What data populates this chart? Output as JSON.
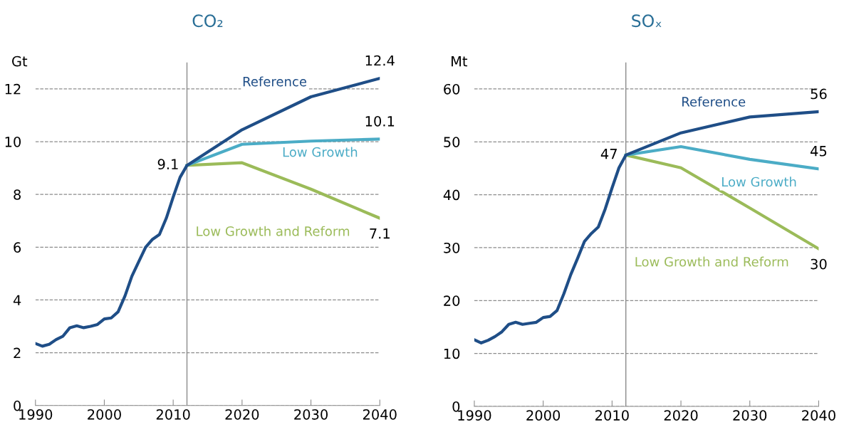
{
  "chart_data": [
    {
      "type": "line",
      "title": "CO₂",
      "ylabel": "Gt",
      "xlim": [
        1990,
        2040
      ],
      "xticks": [
        1990,
        2000,
        2010,
        2020,
        2030,
        2040
      ],
      "ylim": [
        0,
        13
      ],
      "yticks": [
        0,
        2,
        4,
        6,
        8,
        10,
        12
      ],
      "grid": "y",
      "legend": false,
      "series": [
        {
          "name": "Reference",
          "color": "#1f4e87",
          "x": [
            1990,
            1991,
            1992,
            1993,
            1994,
            1995,
            1996,
            1997,
            1998,
            1999,
            2000,
            2001,
            2002,
            2003,
            2004,
            2005,
            2006,
            2007,
            2008,
            2009,
            2010,
            2011,
            2012,
            2020,
            2030,
            2040
          ],
          "values": [
            2.35,
            2.25,
            2.32,
            2.5,
            2.63,
            2.95,
            3.02,
            2.95,
            3.0,
            3.07,
            3.28,
            3.32,
            3.55,
            4.15,
            4.9,
            5.45,
            6.0,
            6.3,
            6.48,
            7.1,
            7.9,
            8.65,
            9.1,
            10.45,
            11.7,
            12.4
          ],
          "value_labels": [
            null,
            null,
            null,
            null,
            null,
            null,
            null,
            null,
            null,
            null,
            null,
            null,
            null,
            null,
            null,
            null,
            null,
            null,
            null,
            null,
            null,
            null,
            "9.1",
            null,
            null,
            "12.4"
          ]
        },
        {
          "name": "Low Growth",
          "color": "#4bacc6",
          "x": [
            2012,
            2020,
            2030,
            2040
          ],
          "values": [
            9.1,
            9.9,
            10.02,
            10.1
          ],
          "value_labels": [
            null,
            null,
            null,
            "10.1"
          ]
        },
        {
          "name": "Low Growth and Reform",
          "color": "#9bbb59",
          "x": [
            2012,
            2020,
            2030,
            2040
          ],
          "values": [
            9.1,
            9.2,
            8.2,
            7.1
          ],
          "value_labels": [
            null,
            null,
            null,
            "7.1"
          ]
        }
      ],
      "ref_lines": [
        {
          "axis": "x",
          "value": 2012,
          "color": "#8c8c8c"
        }
      ]
    },
    {
      "type": "line",
      "title": "SOₓ",
      "ylabel": "Mt",
      "xlim": [
        1990,
        2040
      ],
      "xticks": [
        1990,
        2000,
        2010,
        2020,
        2030,
        2040
      ],
      "ylim": [
        0,
        65
      ],
      "yticks": [
        0,
        10,
        20,
        30,
        40,
        50,
        60
      ],
      "grid": "y",
      "legend": false,
      "series": [
        {
          "name": "Reference",
          "color": "#1f4e87",
          "x": [
            1990,
            1991,
            1992,
            1993,
            1994,
            1995,
            1996,
            1997,
            1998,
            1999,
            2000,
            2001,
            2002,
            2003,
            2004,
            2005,
            2006,
            2007,
            2008,
            2009,
            2010,
            2011,
            2012,
            2020,
            2030,
            2040
          ],
          "values": [
            12.6,
            12.0,
            12.5,
            13.2,
            14.1,
            15.5,
            15.9,
            15.5,
            15.7,
            15.9,
            16.8,
            17.0,
            18.1,
            21.3,
            24.9,
            28.0,
            31.2,
            32.7,
            33.9,
            37.3,
            41.3,
            45.1,
            47.5,
            51.7,
            54.7,
            55.7
          ],
          "value_labels": [
            null,
            null,
            null,
            null,
            null,
            null,
            null,
            null,
            null,
            null,
            null,
            null,
            null,
            null,
            null,
            null,
            null,
            null,
            null,
            null,
            null,
            null,
            "47",
            null,
            null,
            "56"
          ]
        },
        {
          "name": "Low Growth",
          "color": "#4bacc6",
          "x": [
            2012,
            2020,
            2030,
            2040
          ],
          "values": [
            47.5,
            49.1,
            46.7,
            44.9
          ],
          "value_labels": [
            null,
            null,
            null,
            "45"
          ]
        },
        {
          "name": "Low Growth and Reform",
          "color": "#9bbb59",
          "x": [
            2012,
            2020,
            2030,
            2040
          ],
          "values": [
            47.5,
            45.1,
            37.5,
            29.8
          ],
          "value_labels": [
            null,
            null,
            null,
            "30"
          ]
        }
      ],
      "ref_lines": [
        {
          "axis": "x",
          "value": 2012,
          "color": "#8c8c8c"
        }
      ]
    }
  ]
}
